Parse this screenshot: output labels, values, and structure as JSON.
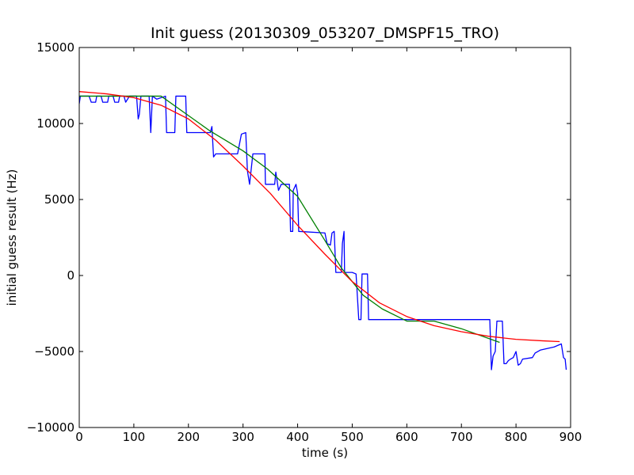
{
  "chart_data": {
    "type": "line",
    "title": "Init guess (20130309_053207_DMSPF15_TRO)",
    "xlabel": "time (s)",
    "ylabel": "initial guess result (Hz)",
    "xlim": [
      0,
      900
    ],
    "ylim": [
      -10000,
      15000
    ],
    "xticks": [
      0,
      100,
      200,
      300,
      400,
      500,
      600,
      700,
      800,
      900
    ],
    "yticks": [
      -10000,
      -5000,
      0,
      5000,
      10000,
      15000
    ],
    "grid": false,
    "legend": "none",
    "series": [
      {
        "color": "#0000ff",
        "points": [
          [
            0,
            11300
          ],
          [
            2,
            11800
          ],
          [
            18,
            11800
          ],
          [
            22,
            11400
          ],
          [
            30,
            11400
          ],
          [
            32,
            11800
          ],
          [
            40,
            11800
          ],
          [
            43,
            11400
          ],
          [
            52,
            11400
          ],
          [
            54,
            11800
          ],
          [
            62,
            11800
          ],
          [
            65,
            11400
          ],
          [
            72,
            11400
          ],
          [
            74,
            11800
          ],
          [
            82,
            11800
          ],
          [
            85,
            11400
          ],
          [
            92,
            11800
          ],
          [
            105,
            11800
          ],
          [
            108,
            10300
          ],
          [
            110,
            10600
          ],
          [
            113,
            11800
          ],
          [
            128,
            11800
          ],
          [
            131,
            9400
          ],
          [
            134,
            11800
          ],
          [
            142,
            11600
          ],
          [
            158,
            11800
          ],
          [
            160,
            9400
          ],
          [
            175,
            9400
          ],
          [
            177,
            11800
          ],
          [
            195,
            11800
          ],
          [
            197,
            9400
          ],
          [
            240,
            9400
          ],
          [
            243,
            9800
          ],
          [
            246,
            7800
          ],
          [
            250,
            8000
          ],
          [
            290,
            8000
          ],
          [
            297,
            9300
          ],
          [
            305,
            9400
          ],
          [
            308,
            6900
          ],
          [
            312,
            6000
          ],
          [
            318,
            8000
          ],
          [
            340,
            8000
          ],
          [
            341,
            6000
          ],
          [
            358,
            6000
          ],
          [
            360,
            6800
          ],
          [
            365,
            5600
          ],
          [
            370,
            6000
          ],
          [
            385,
            6000
          ],
          [
            387,
            2900
          ],
          [
            391,
            2900
          ],
          [
            392,
            5600
          ],
          [
            397,
            6000
          ],
          [
            400,
            5400
          ],
          [
            402,
            2900
          ],
          [
            450,
            2800
          ],
          [
            454,
            2100
          ],
          [
            460,
            2000
          ],
          [
            463,
            2800
          ],
          [
            467,
            2900
          ],
          [
            470,
            200
          ],
          [
            480,
            200
          ],
          [
            482,
            2100
          ],
          [
            485,
            2900
          ],
          [
            486,
            200
          ],
          [
            500,
            200
          ],
          [
            507,
            100
          ],
          [
            512,
            -2900
          ],
          [
            516,
            -2900
          ],
          [
            518,
            100
          ],
          [
            528,
            100
          ],
          [
            530,
            -2900
          ],
          [
            752,
            -2900
          ],
          [
            755,
            -6200
          ],
          [
            758,
            -5300
          ],
          [
            762,
            -5000
          ],
          [
            765,
            -3000
          ],
          [
            775,
            -3000
          ],
          [
            778,
            -5800
          ],
          [
            782,
            -5800
          ],
          [
            786,
            -5600
          ],
          [
            790,
            -5500
          ],
          [
            795,
            -5400
          ],
          [
            800,
            -5000
          ],
          [
            804,
            -5900
          ],
          [
            808,
            -5800
          ],
          [
            812,
            -5500
          ],
          [
            830,
            -5400
          ],
          [
            835,
            -5100
          ],
          [
            845,
            -4900
          ],
          [
            870,
            -4700
          ],
          [
            883,
            -4500
          ],
          [
            887,
            -5400
          ],
          [
            890,
            -5500
          ],
          [
            892,
            -6200
          ]
        ]
      },
      {
        "color": "#008000",
        "points": [
          [
            0,
            11800
          ],
          [
            150,
            11800
          ],
          [
            240,
            9500
          ],
          [
            300,
            8200
          ],
          [
            345,
            7000
          ],
          [
            400,
            5200
          ],
          [
            450,
            2300
          ],
          [
            480,
            500
          ],
          [
            520,
            -1300
          ],
          [
            555,
            -2200
          ],
          [
            600,
            -3000
          ],
          [
            650,
            -3000
          ],
          [
            700,
            -3500
          ],
          [
            770,
            -4400
          ]
        ]
      },
      {
        "color": "#ff0000",
        "points": [
          [
            0,
            12100
          ],
          [
            50,
            11950
          ],
          [
            100,
            11700
          ],
          [
            150,
            11200
          ],
          [
            200,
            10300
          ],
          [
            250,
            8900
          ],
          [
            300,
            7200
          ],
          [
            350,
            5400
          ],
          [
            400,
            3300
          ],
          [
            450,
            1400
          ],
          [
            500,
            -400
          ],
          [
            550,
            -1800
          ],
          [
            600,
            -2700
          ],
          [
            650,
            -3300
          ],
          [
            700,
            -3700
          ],
          [
            750,
            -4000
          ],
          [
            800,
            -4200
          ],
          [
            850,
            -4300
          ],
          [
            880,
            -4350
          ]
        ]
      }
    ]
  }
}
